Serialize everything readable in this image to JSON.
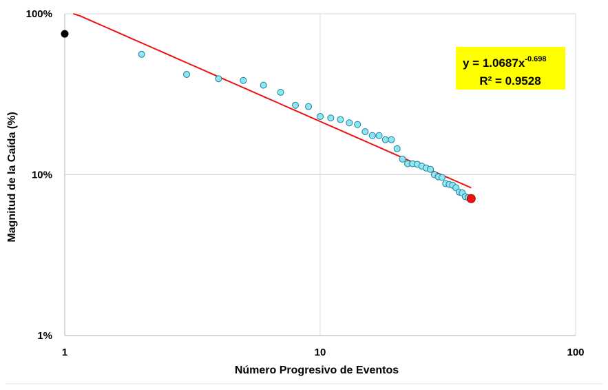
{
  "chart_data": {
    "type": "scatter",
    "title": "",
    "xlabel": "Número Progresivo de Eventos",
    "ylabel": "Magnitud de la Caída (%)",
    "x_scale": "log",
    "y_scale": "log",
    "xlim": [
      1,
      100
    ],
    "ylim": [
      1,
      100
    ],
    "x_ticks": [
      1,
      10,
      100
    ],
    "x_tick_labels": [
      "1",
      "10",
      "100"
    ],
    "y_ticks": [
      1,
      10,
      100
    ],
    "y_tick_labels": [
      "1%",
      "10%",
      "100%"
    ],
    "grid": "major gridlines on both axes",
    "legend": "none",
    "colors": {
      "points_fill": "#8ee6f4",
      "points_stroke": "#1f7f94",
      "first_point": "#000000",
      "last_point": "#ee1111",
      "trendline": "#ee1111",
      "annotation_bg": "#ffff00",
      "grid": "#d9d9d9",
      "axis": "#bfbfbf"
    },
    "points": [
      {
        "x": 1,
        "y": 75
      },
      {
        "x": 2,
        "y": 56
      },
      {
        "x": 3,
        "y": 42
      },
      {
        "x": 4,
        "y": 39.5
      },
      {
        "x": 5,
        "y": 38.5
      },
      {
        "x": 6,
        "y": 36
      },
      {
        "x": 7,
        "y": 32.5
      },
      {
        "x": 8,
        "y": 27
      },
      {
        "x": 9,
        "y": 26.5
      },
      {
        "x": 10,
        "y": 23
      },
      {
        "x": 11,
        "y": 22.5
      },
      {
        "x": 12,
        "y": 22
      },
      {
        "x": 13,
        "y": 21
      },
      {
        "x": 14,
        "y": 20.5
      },
      {
        "x": 15,
        "y": 18.5
      },
      {
        "x": 16,
        "y": 17.5
      },
      {
        "x": 17,
        "y": 17.5
      },
      {
        "x": 18,
        "y": 16.5
      },
      {
        "x": 19,
        "y": 16.5
      },
      {
        "x": 20,
        "y": 14.5
      },
      {
        "x": 21,
        "y": 12.5
      },
      {
        "x": 22,
        "y": 11.7
      },
      {
        "x": 23,
        "y": 11.7
      },
      {
        "x": 24,
        "y": 11.6
      },
      {
        "x": 25,
        "y": 11.3
      },
      {
        "x": 26,
        "y": 11
      },
      {
        "x": 27,
        "y": 10.8
      },
      {
        "x": 28,
        "y": 10
      },
      {
        "x": 29,
        "y": 9.7
      },
      {
        "x": 30,
        "y": 9.6
      },
      {
        "x": 31,
        "y": 8.8
      },
      {
        "x": 32,
        "y": 8.7
      },
      {
        "x": 33,
        "y": 8.6
      },
      {
        "x": 34,
        "y": 8.3
      },
      {
        "x": 35,
        "y": 7.8
      },
      {
        "x": 36,
        "y": 7.7
      },
      {
        "x": 37,
        "y": 7.3
      },
      {
        "x": 38,
        "y": 7.2
      },
      {
        "x": 39,
        "y": 7.1
      }
    ],
    "highlighted_points": {
      "first_index": 0,
      "last_index": 38
    },
    "trendline": {
      "type": "power",
      "coefficient": 106.87,
      "exponent": -0.698,
      "x_range": [
        1.08,
        39
      ],
      "equation_label": "y = 1.0687x",
      "exponent_label": "-0.698",
      "r2_label": "R² = 0.9528"
    }
  }
}
